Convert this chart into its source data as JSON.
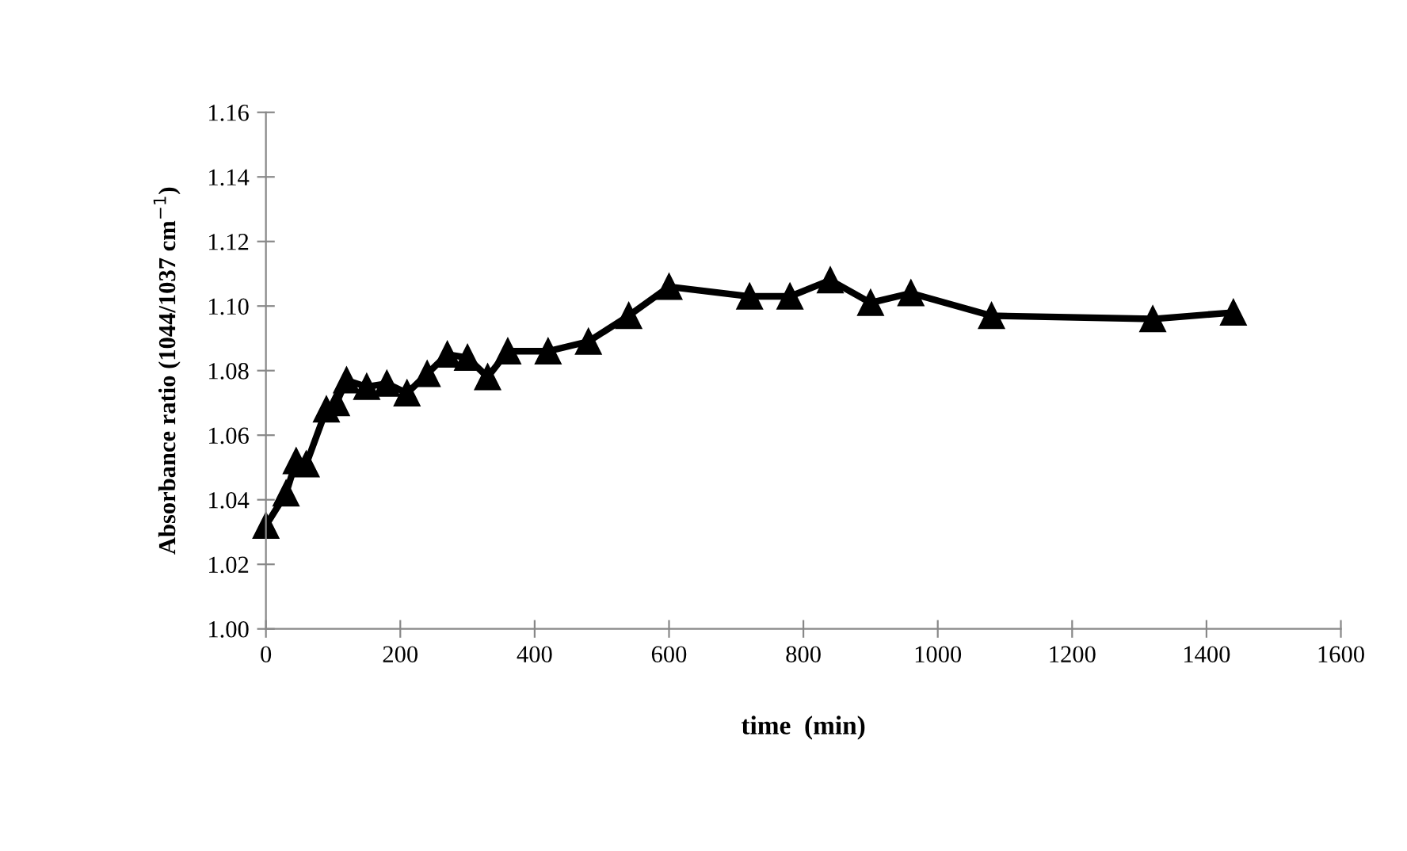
{
  "chart_data": {
    "type": "line",
    "xlabel": "time  (min)",
    "ylabel": "Absorbance ratio (1044/1037 cm$^{−1}$)",
    "x": [
      0,
      30,
      45,
      60,
      90,
      105,
      120,
      150,
      180,
      210,
      240,
      270,
      300,
      330,
      360,
      420,
      480,
      540,
      600,
      720,
      780,
      840,
      900,
      960,
      1080,
      1320,
      1440
    ],
    "series": [
      {
        "color": "#000000",
        "values": [
          1.032,
          1.042,
          1.052,
          1.051,
          1.068,
          1.07,
          1.077,
          1.075,
          1.076,
          1.073,
          1.079,
          1.085,
          1.084,
          1.078,
          1.086,
          1.086,
          1.089,
          1.097,
          1.106,
          1.103,
          1.103,
          1.108,
          1.101,
          1.104,
          1.097,
          1.096,
          1.098
        ]
      }
    ],
    "xlim": [
      0,
      1600
    ],
    "xticks": [
      0,
      200,
      400,
      600,
      800,
      1000,
      1200,
      1400,
      1600
    ],
    "ylim": [
      1.0,
      1.16
    ],
    "yticks": [
      {
        "value": 1.0,
        "label": "1.00"
      },
      {
        "value": 1.02,
        "label": "1.02"
      },
      {
        "value": 1.04,
        "label": "1.04"
      },
      {
        "value": 1.06,
        "label": "1.06"
      },
      {
        "value": 1.08,
        "label": "1.08"
      },
      {
        "value": 1.1,
        "label": "1.10"
      },
      {
        "value": 1.12,
        "label": "1.12"
      },
      {
        "value": 1.14,
        "label": "1.14"
      },
      {
        "value": 1.16,
        "label": "1.16"
      }
    ],
    "marker": "triangle",
    "line_style": "solid",
    "grid": false,
    "legend": false
  }
}
